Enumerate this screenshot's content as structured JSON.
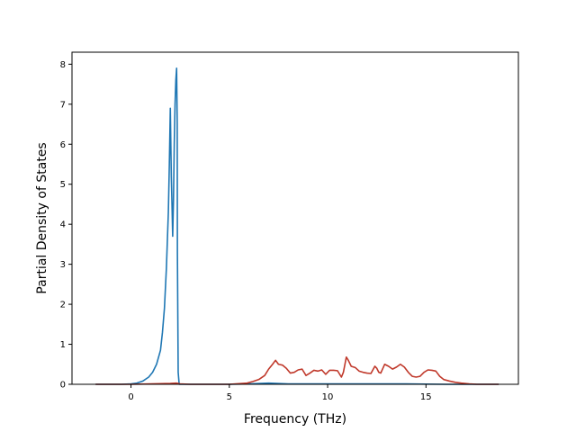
{
  "chart_data": {
    "type": "line",
    "title": "",
    "xlabel": "Frequency (THz)",
    "ylabel": "Partial Density of States",
    "xlim": [
      -3.0,
      19.7
    ],
    "ylim": [
      0,
      8.3
    ],
    "xticks": [
      0,
      5,
      10,
      15
    ],
    "yticks": [
      0,
      1,
      2,
      3,
      4,
      5,
      6,
      7,
      8
    ],
    "grid": false,
    "legend": "none",
    "series": [
      {
        "color": "#1f77b4",
        "x": [
          -1.8,
          -0.5,
          0.0,
          0.3,
          0.6,
          0.9,
          1.1,
          1.3,
          1.5,
          1.6,
          1.7,
          1.8,
          1.9,
          1.95,
          2.0,
          2.05,
          2.08,
          2.12,
          2.16,
          2.2,
          2.24,
          2.28,
          2.32,
          2.35,
          2.36,
          2.4,
          2.45,
          2.6,
          5.0,
          6.0,
          7.0,
          8.0,
          10.0,
          12.0,
          14.0,
          16.0,
          18.7
        ],
        "y": [
          0,
          0,
          0.01,
          0.03,
          0.08,
          0.18,
          0.3,
          0.5,
          0.85,
          1.3,
          1.9,
          2.9,
          4.3,
          5.5,
          6.9,
          5.2,
          4.6,
          3.7,
          4.6,
          6.0,
          7.0,
          7.6,
          7.9,
          6.5,
          3.3,
          0.3,
          0,
          0,
          0,
          0.01,
          0.03,
          0.01,
          0.01,
          0.01,
          0.01,
          0,
          0
        ]
      },
      {
        "color": "#c0392b",
        "x": [
          -1.8,
          0,
          1,
          2,
          2.3,
          2.5,
          3,
          5,
          5.9,
          6.2,
          6.5,
          6.8,
          7.0,
          7.2,
          7.35,
          7.5,
          7.7,
          7.9,
          8.1,
          8.3,
          8.5,
          8.7,
          8.9,
          9.1,
          9.3,
          9.5,
          9.7,
          9.9,
          10.1,
          10.3,
          10.5,
          10.7,
          10.8,
          10.95,
          11.05,
          11.2,
          11.4,
          11.6,
          11.8,
          12.0,
          12.2,
          12.4,
          12.5,
          12.6,
          12.7,
          12.9,
          13.1,
          13.3,
          13.5,
          13.7,
          13.9,
          14.1,
          14.3,
          14.5,
          14.7,
          14.9,
          15.1,
          15.3,
          15.5,
          15.7,
          15.9,
          16.2,
          16.5,
          16.8,
          17.2,
          17.6,
          18.7
        ],
        "y": [
          0,
          0,
          0.01,
          0.02,
          0.03,
          0.01,
          0,
          0,
          0.03,
          0.07,
          0.12,
          0.22,
          0.38,
          0.5,
          0.6,
          0.5,
          0.48,
          0.4,
          0.28,
          0.3,
          0.36,
          0.38,
          0.22,
          0.28,
          0.35,
          0.33,
          0.36,
          0.25,
          0.35,
          0.35,
          0.34,
          0.18,
          0.3,
          0.68,
          0.6,
          0.45,
          0.42,
          0.33,
          0.3,
          0.28,
          0.27,
          0.45,
          0.4,
          0.3,
          0.28,
          0.5,
          0.45,
          0.38,
          0.43,
          0.5,
          0.43,
          0.3,
          0.2,
          0.18,
          0.2,
          0.3,
          0.36,
          0.35,
          0.33,
          0.2,
          0.12,
          0.08,
          0.05,
          0.03,
          0.01,
          0,
          0
        ]
      }
    ]
  }
}
